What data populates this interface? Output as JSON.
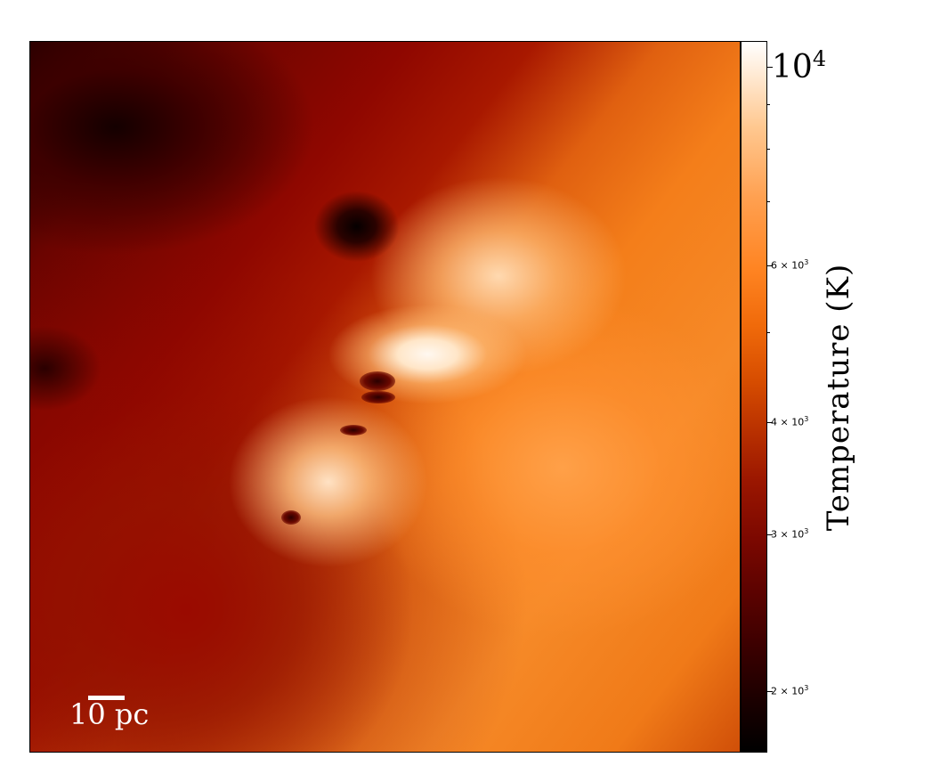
{
  "image": {
    "colormap": "gist_heat",
    "colors": {
      "coldest": "#000000",
      "cool": "#8f0700",
      "warm": "#f47e1a",
      "hottest": "#ffffff"
    }
  },
  "scalebar": {
    "label": "10 pc"
  },
  "colorbar": {
    "title": "Temperature  (K)",
    "scale": "log",
    "range": [
      1750,
      10500
    ],
    "ticks": [
      {
        "value": 10000,
        "mantissa": "10",
        "exponent": "4"
      },
      {
        "value": 6000,
        "mantissa": "6 × 10",
        "exponent": "3"
      },
      {
        "value": 4000,
        "mantissa": "4 × 10",
        "exponent": "3"
      },
      {
        "value": 3000,
        "mantissa": "3 × 10",
        "exponent": "3"
      },
      {
        "value": 2000,
        "mantissa": "2 × 10",
        "exponent": "3"
      }
    ]
  }
}
